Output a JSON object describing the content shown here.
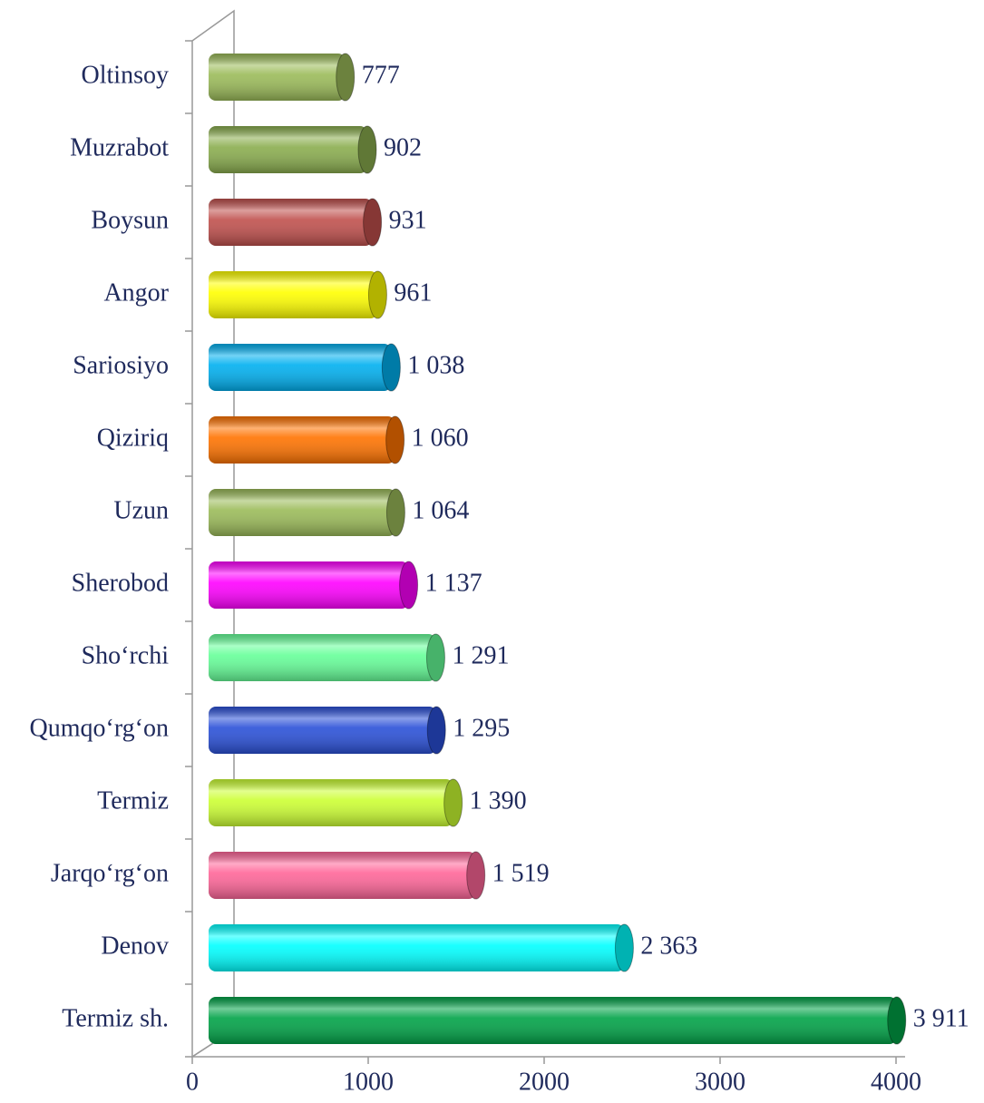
{
  "chart_data": {
    "type": "bar",
    "orientation": "horizontal",
    "categories": [
      "Oltinsoy",
      "Muzrabot",
      "Boysun",
      "Angor",
      "Sariosiyo",
      "Qiziriq",
      "Uzun",
      "Sherobod",
      "Sho‘rchi",
      "Qumqo‘rg‘on",
      "Termiz",
      "Jarqo‘rg‘on",
      "Denov",
      "Termiz sh."
    ],
    "values": [
      777,
      902,
      931,
      961,
      1038,
      1060,
      1064,
      1137,
      1291,
      1295,
      1390,
      1519,
      2363,
      3911
    ],
    "value_labels": [
      "777",
      "902",
      "931",
      "961",
      "1 038",
      "1 060",
      "1 064",
      "1 137",
      "1 291",
      "1 295",
      "1 390",
      "1 519",
      "2 363",
      "3 911"
    ],
    "colors": [
      "#9bbb59",
      "#8aad4e",
      "#c0504d",
      "#ffff00",
      "#00b0f0",
      "#ff7300",
      "#9bbb59",
      "#ff00ff",
      "#66ff99",
      "#2a50d8",
      "#ccff33",
      "#ff6699",
      "#00ffff",
      "#00a347"
    ],
    "xlim": [
      0,
      4000
    ],
    "xticks": [
      0,
      1000,
      2000,
      3000,
      4000
    ]
  }
}
